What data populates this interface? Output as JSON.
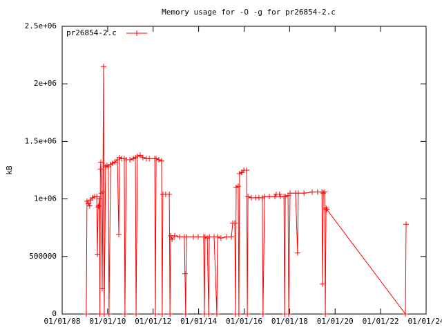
{
  "chart_data": {
    "type": "line",
    "title": "Memory usage for -O -g for pr26854-2.c",
    "y_label": "kB",
    "x": [
      2009.06,
      2009.09,
      2009.15,
      2009.21,
      2009.24,
      2009.34,
      2009.43,
      2009.52,
      2009.55,
      2009.58,
      2009.61,
      2009.64,
      2009.66,
      2009.68,
      2009.7,
      2009.73,
      2009.76,
      2009.79,
      2009.82,
      2009.85,
      2009.91,
      2009.97,
      2010.03,
      2010.06,
      2010.13,
      2010.22,
      2010.31,
      2010.43,
      2010.49,
      2010.52,
      2010.61,
      2010.73,
      2010.76,
      2010.82,
      2010.98,
      2011.13,
      2011.22,
      2011.25,
      2011.31,
      2011.43,
      2011.55,
      2011.7,
      2011.83,
      2012.07,
      2012.1,
      2012.13,
      2012.25,
      2012.37,
      2012.4,
      2012.43,
      2012.55,
      2012.71,
      2012.74,
      2012.77,
      2012.83,
      2012.95,
      2013.16,
      2013.37,
      2013.4,
      2013.43,
      2013.46,
      2013.77,
      2013.98,
      2014.22,
      2014.25,
      2014.28,
      2014.38,
      2014.44,
      2014.47,
      2014.68,
      2014.8,
      2014.83,
      2014.98,
      2015.23,
      2015.44,
      2015.5,
      2015.59,
      2015.62,
      2015.65,
      2015.74,
      2015.77,
      2015.8,
      2015.89,
      2015.99,
      2016.11,
      2016.14,
      2016.17,
      2016.32,
      2016.5,
      2016.65,
      2016.8,
      2016.83,
      2016.9,
      2017.11,
      2017.35,
      2017.41,
      2017.56,
      2017.59,
      2017.75,
      2017.78,
      2017.81,
      2017.93,
      2017.96,
      2018.02,
      2018.26,
      2018.35,
      2018.38,
      2018.63,
      2018.99,
      2019.23,
      2019.42,
      2019.45,
      2019.48,
      2019.54,
      2019.57,
      2019.6,
      2019.63,
      2023.09,
      2023.12
    ],
    "series": [
      {
        "name": "pr26854-2.c",
        "color": "#ff0000",
        "values": [
          0,
          980000,
          960000,
          940000,
          990000,
          1010000,
          1020000,
          1020000,
          520000,
          930000,
          940000,
          1000000,
          0,
          1260000,
          1320000,
          1050000,
          220000,
          1060000,
          2150000,
          0,
          1280000,
          1290000,
          1280000,
          0,
          1300000,
          1310000,
          1320000,
          1340000,
          690000,
          1360000,
          1350000,
          1350000,
          0,
          1340000,
          1340000,
          1350000,
          1360000,
          0,
          1370000,
          1380000,
          1360000,
          1350000,
          1350000,
          1350000,
          0,
          1350000,
          1340000,
          1330000,
          0,
          1040000,
          1040000,
          1040000,
          0,
          680000,
          650000,
          680000,
          670000,
          670000,
          350000,
          0,
          670000,
          670000,
          670000,
          670000,
          0,
          670000,
          660000,
          0,
          670000,
          670000,
          0,
          670000,
          660000,
          670000,
          670000,
          790000,
          790000,
          0,
          1100000,
          1110000,
          0,
          1220000,
          1230000,
          1250000,
          1250000,
          0,
          1020000,
          1010000,
          1010000,
          1010000,
          1010000,
          0,
          1020000,
          1020000,
          1020000,
          1040000,
          1040000,
          1020000,
          1020000,
          0,
          1020000,
          1030000,
          0,
          1050000,
          1050000,
          530000,
          1050000,
          1050000,
          1060000,
          1060000,
          1060000,
          260000,
          1050000,
          1060000,
          0,
          920000,
          910000,
          0,
          780000
        ]
      }
    ],
    "xlim": [
      2008,
      2024
    ],
    "xticks": [
      {
        "value": 2008,
        "label": "01/01/08"
      },
      {
        "value": 2010,
        "label": "01/01/10"
      },
      {
        "value": 2012,
        "label": "01/01/12"
      },
      {
        "value": 2014,
        "label": "01/01/14"
      },
      {
        "value": 2016,
        "label": "01/01/16"
      },
      {
        "value": 2018,
        "label": "01/01/18"
      },
      {
        "value": 2020,
        "label": "01/01/20"
      },
      {
        "value": 2022,
        "label": "01/01/22"
      },
      {
        "value": 2024,
        "label": "01/01/24"
      }
    ],
    "ylim": [
      0,
      2500000
    ],
    "yticks": [
      0,
      500000,
      {
        "value": 1000000,
        "label": "1e+06"
      },
      {
        "value": 1500000,
        "label": "1.5e+06"
      },
      {
        "value": 2000000,
        "label": "2e+06"
      },
      {
        "value": 2500000,
        "label": "2.5e+06"
      }
    ],
    "grid": false,
    "legend": "top-left"
  }
}
